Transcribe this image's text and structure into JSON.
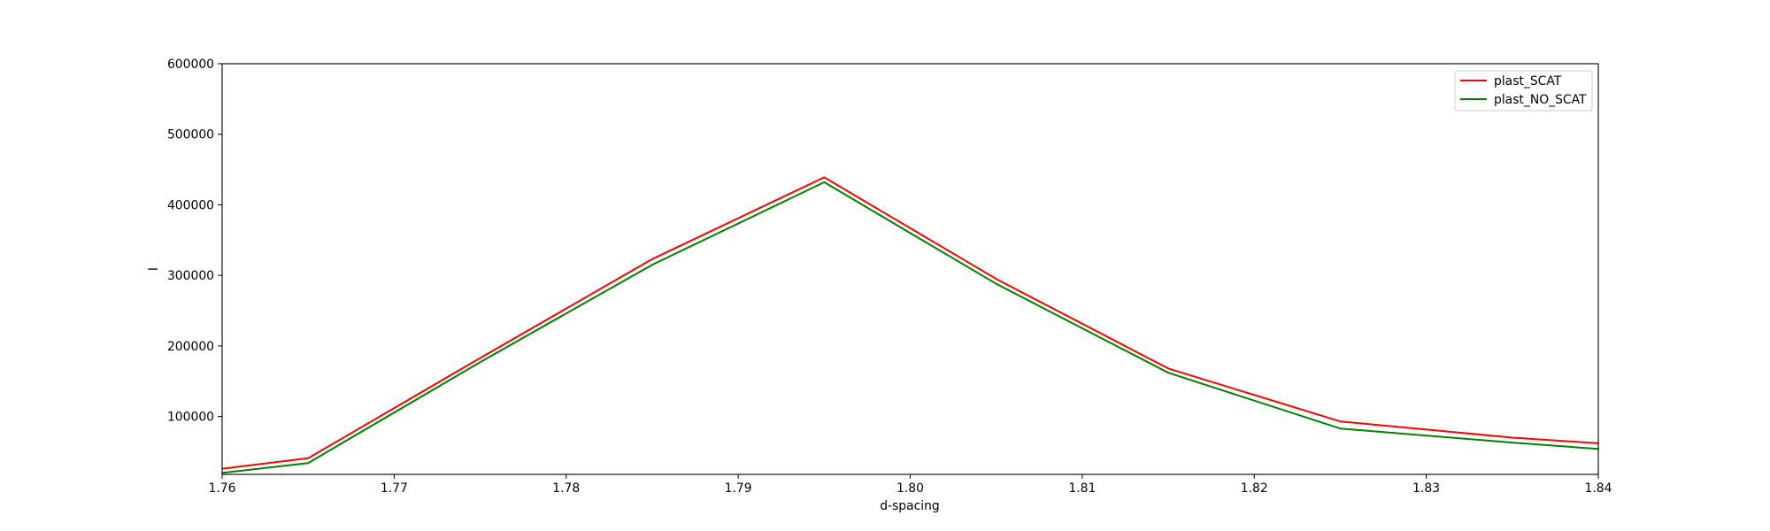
{
  "chart_data": {
    "type": "line",
    "title": "",
    "xlabel": "d-spacing",
    "ylabel": "I",
    "xlim": [
      1.76,
      1.84
    ],
    "ylim": [
      18000,
      600000
    ],
    "xticks": [
      1.76,
      1.77,
      1.78,
      1.79,
      1.8,
      1.81,
      1.82,
      1.83,
      1.84
    ],
    "xtick_labels": [
      "1.76",
      "1.77",
      "1.78",
      "1.79",
      "1.80",
      "1.81",
      "1.82",
      "1.83",
      "1.84"
    ],
    "yticks": [
      100000,
      200000,
      300000,
      400000,
      500000,
      600000
    ],
    "ytick_labels": [
      "100000",
      "200000",
      "300000",
      "400000",
      "500000",
      "600000"
    ],
    "grid": false,
    "legend_position": "top-right",
    "series": [
      {
        "name": "plast_SCAT",
        "color": "#ff0000",
        "x": [
          1.76,
          1.765,
          1.775,
          1.785,
          1.795,
          1.805,
          1.815,
          1.825,
          1.835,
          1.84
        ],
        "y": [
          26000,
          41000,
          183000,
          323000,
          439000,
          295000,
          168000,
          93000,
          70000,
          62000
        ]
      },
      {
        "name": "plast_NO_SCAT",
        "color": "#008000",
        "x": [
          1.76,
          1.765,
          1.775,
          1.785,
          1.795,
          1.805,
          1.815,
          1.825,
          1.835,
          1.84
        ],
        "y": [
          20000,
          34000,
          177000,
          315000,
          432000,
          288000,
          162000,
          83000,
          63000,
          54000
        ]
      }
    ]
  }
}
